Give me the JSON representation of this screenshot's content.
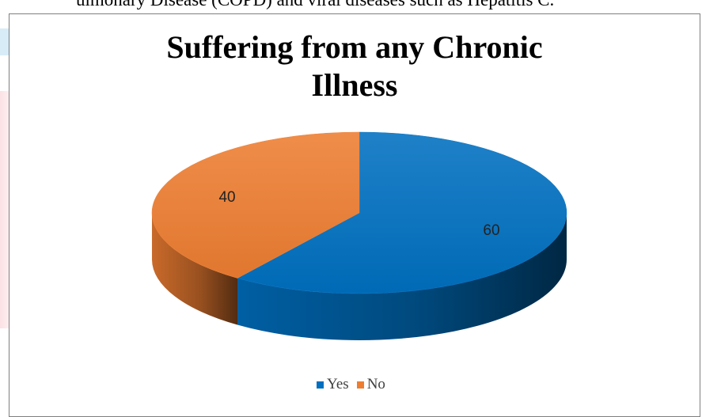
{
  "document": {
    "preceding_text": "ulmonary Disease (COPD) and viral diseases such as Hepatitis C."
  },
  "chart_data": {
    "type": "pie",
    "title": "Suffering from any Chronic Illness",
    "title_lines": [
      "Suffering from any Chronic",
      "Illness"
    ],
    "categories": [
      "Yes",
      "No"
    ],
    "values": [
      60,
      40
    ],
    "data_labels": [
      "60",
      "40"
    ],
    "colors": [
      "#0070c0",
      "#ed7d31"
    ],
    "legend_position": "bottom",
    "style": "3d-pie"
  }
}
